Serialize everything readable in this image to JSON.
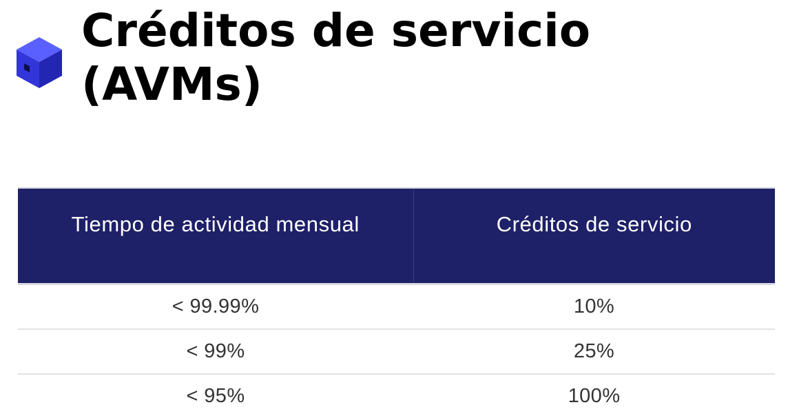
{
  "title": "Créditos de servicio (AVMs)",
  "colors": {
    "header_background": "#1e2068",
    "header_text": "#ffffff",
    "cube_accent": "#3b3fe8"
  },
  "icon": "blue-cube-icon",
  "table": {
    "headers": [
      "Tiempo de actividad mensual",
      "Créditos de servicio"
    ],
    "rows": [
      [
        "< 99.99%",
        "10%"
      ],
      [
        "< 99%",
        "25%"
      ],
      [
        "< 95%",
        "100%"
      ]
    ]
  }
}
